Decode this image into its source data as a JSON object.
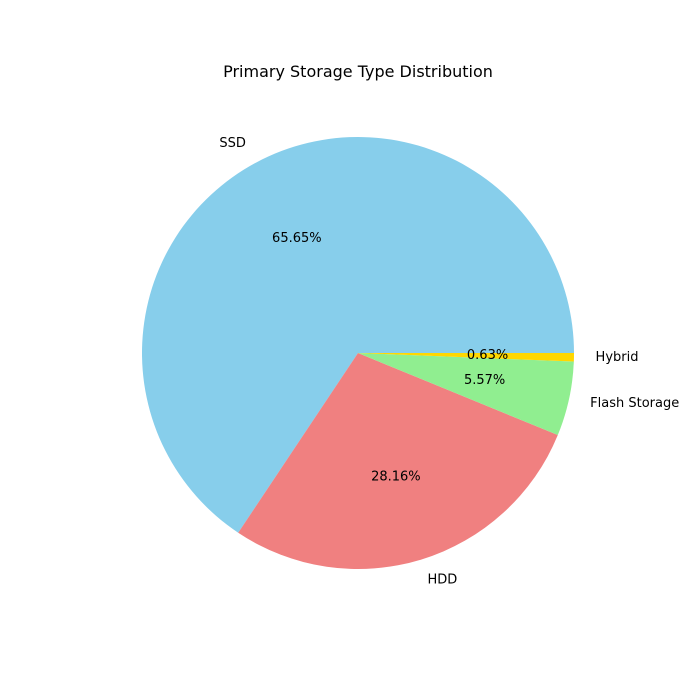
{
  "chart_data": {
    "type": "pie",
    "title": "Primary Storage Type Distribution",
    "start_angle_deg": 0,
    "direction": "counterclockwise",
    "slices": [
      {
        "label": "SSD",
        "percent": 65.65,
        "percent_label": "65.65%",
        "color": "#87CEEB"
      },
      {
        "label": "HDD",
        "percent": 28.16,
        "percent_label": "28.16%",
        "color": "#F08080"
      },
      {
        "label": "Flash Storage",
        "percent": 5.57,
        "percent_label": "5.57%",
        "color": "#90EE90"
      },
      {
        "label": "Hybrid",
        "percent": 0.63,
        "percent_label": "0.63%",
        "color": "#FFD700"
      }
    ]
  }
}
